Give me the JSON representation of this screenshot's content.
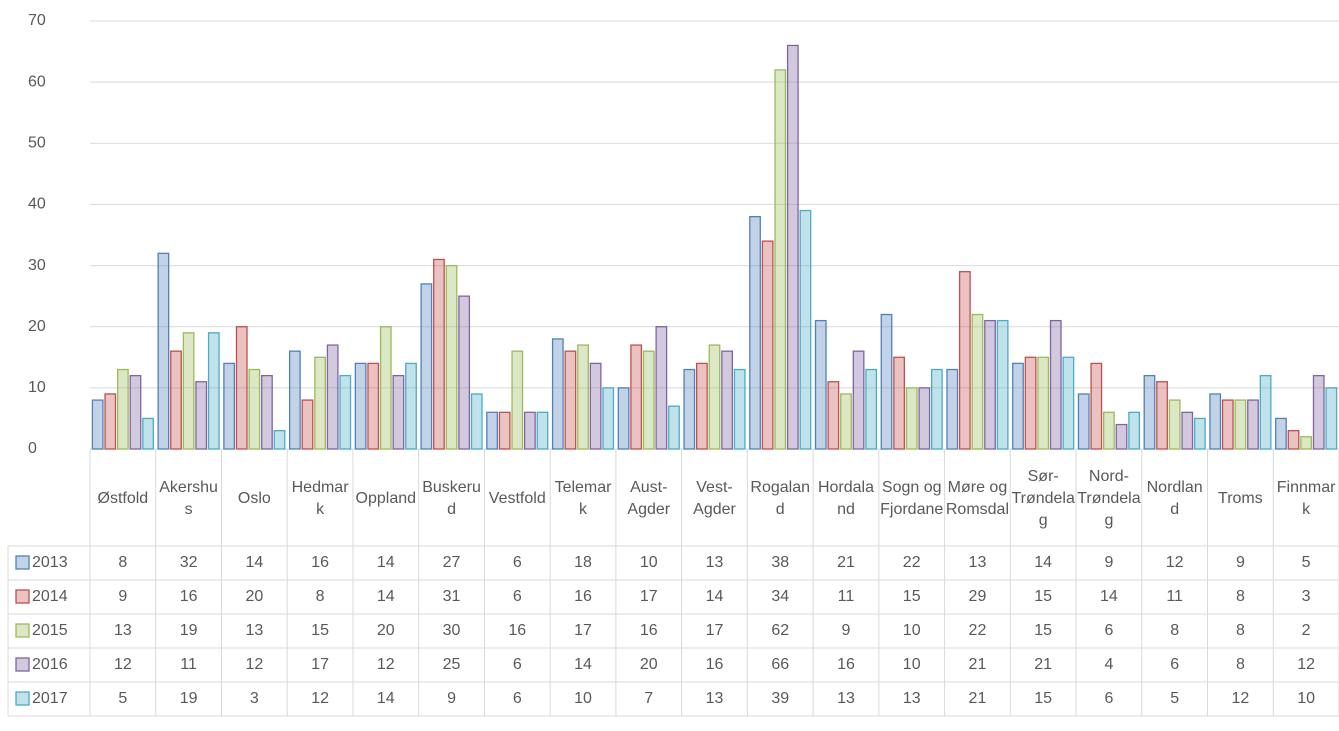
{
  "chart_data": {
    "type": "bar",
    "categories": [
      "Østfold",
      "Akershus",
      "Oslo",
      "Hedmark",
      "Oppland",
      "Buskerud",
      "Vestfold",
      "Telemark",
      "Aust-Agder",
      "Vest-Agder",
      "Rogaland",
      "Hordaland",
      "Sogn og Fjordane",
      "Møre og Romsdal",
      "Sør-Trøndelag",
      "Nord-Trøndelag",
      "Nordland",
      "Troms",
      "Finnmark"
    ],
    "series": [
      {
        "name": "2013",
        "color": "#4f81bd",
        "values": [
          8,
          32,
          14,
          16,
          14,
          27,
          6,
          18,
          10,
          13,
          38,
          21,
          22,
          13,
          14,
          9,
          12,
          9,
          5
        ]
      },
      {
        "name": "2014",
        "color": "#c0504d",
        "values": [
          9,
          16,
          20,
          8,
          14,
          31,
          6,
          16,
          17,
          14,
          34,
          11,
          15,
          29,
          15,
          14,
          11,
          8,
          3
        ]
      },
      {
        "name": "2015",
        "color": "#9bbb59",
        "values": [
          13,
          19,
          13,
          15,
          20,
          30,
          16,
          17,
          16,
          17,
          62,
          9,
          10,
          22,
          15,
          6,
          8,
          8,
          2
        ]
      },
      {
        "name": "2016",
        "color": "#8064a2",
        "values": [
          12,
          11,
          12,
          17,
          12,
          25,
          6,
          14,
          20,
          16,
          66,
          16,
          10,
          21,
          21,
          4,
          6,
          8,
          12
        ]
      },
      {
        "name": "2017",
        "color": "#4bacc6",
        "values": [
          5,
          19,
          3,
          12,
          14,
          9,
          6,
          10,
          7,
          13,
          39,
          13,
          13,
          21,
          15,
          6,
          5,
          12,
          10
        ]
      }
    ],
    "ylim": [
      0,
      70
    ],
    "yticks": [
      0,
      10,
      20,
      30,
      40,
      50,
      60,
      70
    ],
    "grid": true
  }
}
